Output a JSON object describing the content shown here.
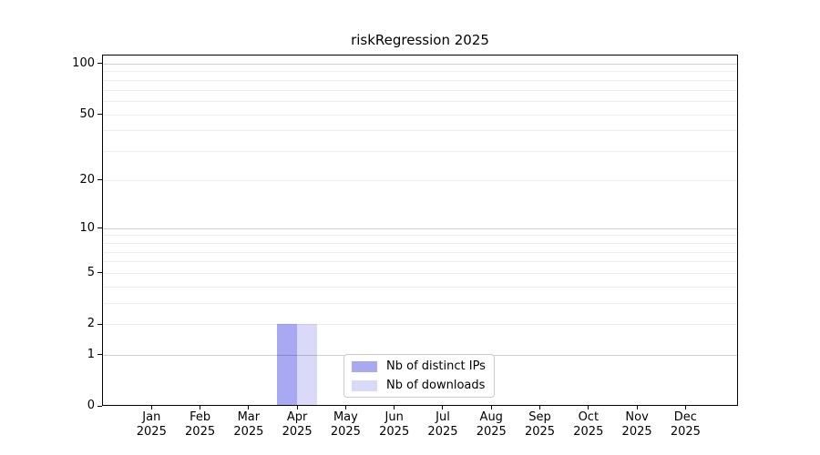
{
  "chart_data": {
    "type": "bar",
    "title": "riskRegression 2025",
    "categories": [
      "Jan",
      "Feb",
      "Mar",
      "Apr",
      "May",
      "Jun",
      "Jul",
      "Aug",
      "Sep",
      "Oct",
      "Nov",
      "Dec"
    ],
    "category_year": "2025",
    "series": [
      {
        "name": "Nb of distinct IPs",
        "color": "#a8a8f3",
        "values": [
          0,
          0,
          0,
          2,
          0,
          0,
          0,
          0,
          0,
          0,
          0,
          0
        ]
      },
      {
        "name": "Nb of downloads",
        "color": "#dadaf8",
        "values": [
          0,
          0,
          0,
          2,
          0,
          0,
          0,
          0,
          0,
          0,
          0,
          0
        ]
      }
    ],
    "yscale": "log1p",
    "ylim": [
      0,
      113
    ],
    "yticks": [
      0,
      1,
      2,
      5,
      10,
      20,
      50,
      100
    ],
    "gridlines_major": [
      1,
      10,
      100
    ],
    "gridlines_minor": [
      2,
      3,
      4,
      5,
      6,
      7,
      8,
      9,
      20,
      30,
      40,
      50,
      60,
      70,
      80,
      90
    ],
    "grid": true,
    "legend_position": "lower center"
  }
}
